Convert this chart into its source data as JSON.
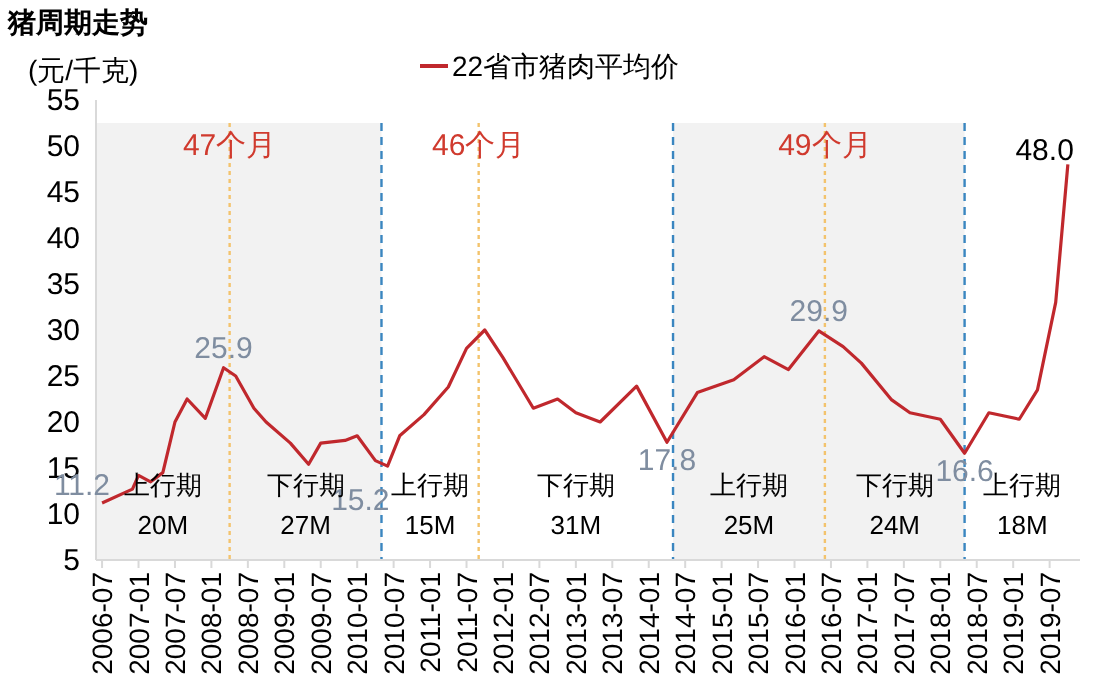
{
  "chart_data": {
    "type": "line",
    "title": "猪周期走势",
    "ylabel": "(元/千克)",
    "legend": "top",
    "x": [
      "2006-07",
      "2006-12",
      "2007-01",
      "2007-03",
      "2007-05",
      "2007-07",
      "2007-09",
      "2007-12",
      "2008-03",
      "2008-05",
      "2008-08",
      "2008-10",
      "2009-02",
      "2009-05",
      "2009-07",
      "2009-11",
      "2010-01",
      "2010-04",
      "2010-06",
      "2010-08",
      "2010-12",
      "2011-04",
      "2011-07",
      "2011-10",
      "2012-01",
      "2012-06",
      "2012-10",
      "2013-01",
      "2013-05",
      "2013-11",
      "2014-04",
      "2014-09",
      "2015-03",
      "2015-08",
      "2015-12",
      "2016-05",
      "2016-09",
      "2016-12",
      "2017-05",
      "2017-08",
      "2018-01",
      "2018-05",
      "2018-09",
      "2019-02",
      "2019-05",
      "2019-08",
      "2019-10"
    ],
    "series": [
      {
        "name": "22省市猪肉平均价",
        "color": "#c0282d",
        "values": [
          11.2,
          12.7,
          14.2,
          13.5,
          14.5,
          20,
          22.5,
          20.4,
          25.9,
          25,
          21.5,
          20,
          17.7,
          15.4,
          17.7,
          18,
          18.5,
          15.8,
          15.2,
          18.5,
          20.8,
          23.8,
          28,
          30,
          27,
          21.5,
          22.5,
          21,
          20,
          23.9,
          17.8,
          23.2,
          24.6,
          27.1,
          25.7,
          29.9,
          28.2,
          26.4,
          22.4,
          21,
          20.3,
          16.6,
          21,
          20.3,
          23.5,
          33,
          48.0
        ],
        "value_labels": [
          "11.2",
          null,
          null,
          null,
          null,
          null,
          null,
          null,
          "25.9",
          null,
          null,
          null,
          null,
          null,
          null,
          null,
          null,
          null,
          "15.2",
          null,
          null,
          null,
          null,
          null,
          null,
          null,
          null,
          null,
          null,
          null,
          "17.8",
          null,
          null,
          null,
          null,
          "29.9",
          null,
          null,
          null,
          null,
          null,
          "16.6",
          null,
          null,
          null,
          null,
          "48.0"
        ]
      }
    ],
    "ylim": [
      5,
      55
    ],
    "yticks": [
      5,
      10,
      15,
      20,
      25,
      30,
      35,
      40,
      45,
      50,
      55
    ],
    "xlim": [
      "2006-06",
      "2019-12"
    ],
    "xticks": [
      "2006-07",
      "2007-01",
      "2007-07",
      "2008-01",
      "2008-07",
      "2009-01",
      "2009-07",
      "2010-01",
      "2010-07",
      "2011-01",
      "2011-07",
      "2012-01",
      "2012-07",
      "2013-01",
      "2013-07",
      "2014-01",
      "2014-07",
      "2015-01",
      "2015-07",
      "2016-01",
      "2016-07",
      "2017-01",
      "2017-07",
      "2018-01",
      "2018-07",
      "2019-01",
      "2019-07"
    ],
    "bands": [
      {
        "axis": "x",
        "from": "2006-06",
        "to": "2010-05",
        "color": "#f2f2f2"
      },
      {
        "axis": "x",
        "from": "2014-05",
        "to": "2018-05",
        "color": "#f2f2f2"
      }
    ],
    "ref_lines": [
      {
        "axis": "x",
        "value": "2010-05",
        "color": "#3a86c0",
        "line_style": "dashed"
      },
      {
        "axis": "x",
        "value": "2014-05",
        "color": "#3a86c0",
        "line_style": "dashed"
      },
      {
        "axis": "x",
        "value": "2018-05",
        "color": "#3a86c0",
        "line_style": "dashed"
      },
      {
        "axis": "x",
        "value": "2008-04",
        "label": "47个月",
        "color": "#f3c36d",
        "line_style": "dotted"
      },
      {
        "axis": "x",
        "value": "2011-09",
        "label": "46个月",
        "color": "#f3c36d",
        "line_style": "dotted"
      },
      {
        "axis": "x",
        "value": "2016-06",
        "label": "49个月",
        "color": "#f3c36d",
        "line_style": "dotted"
      }
    ],
    "annotations": [
      "上行期\n20M",
      "下行期\n27M",
      "上行期\n15M",
      "下行期\n31M",
      "上行期\n25M",
      "下行期\n24M",
      "上行期\n18M"
    ],
    "grid": false,
    "marker": "none",
    "line_style": "solid"
  }
}
